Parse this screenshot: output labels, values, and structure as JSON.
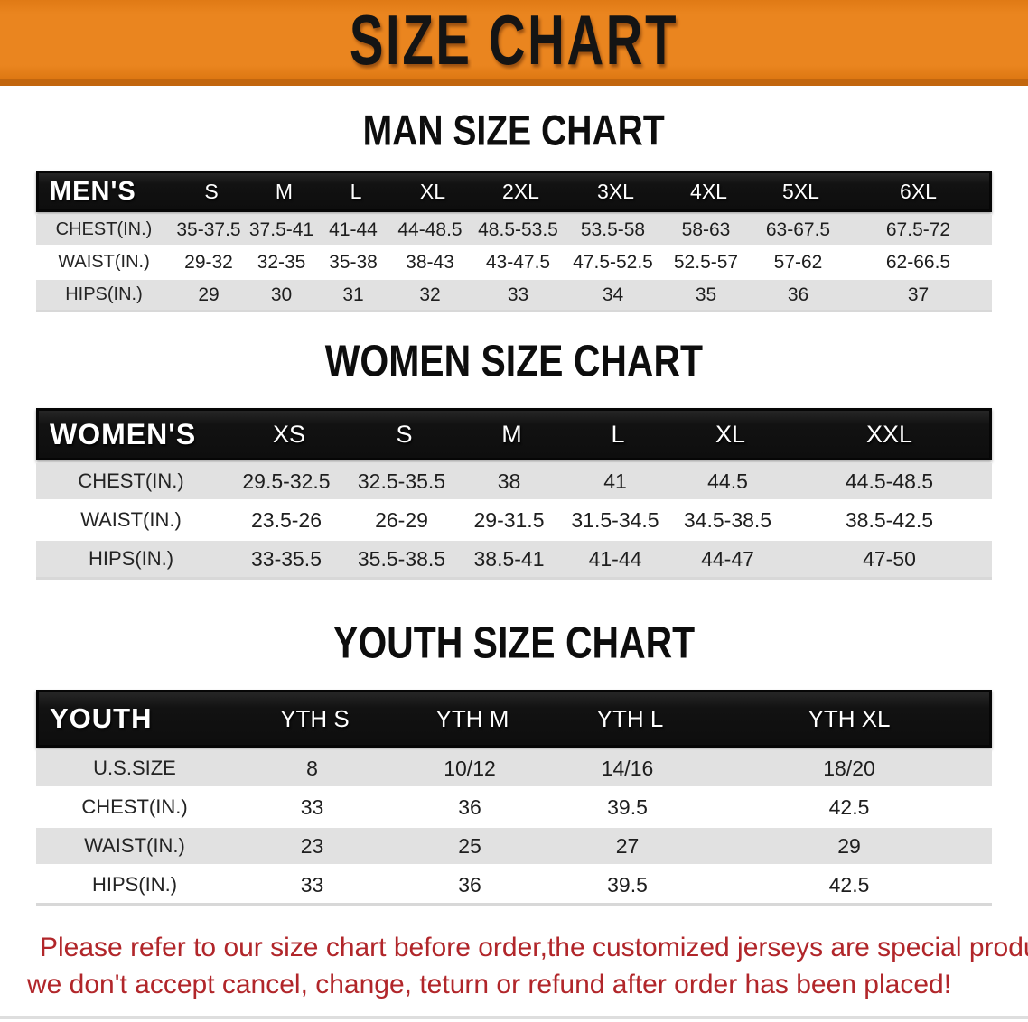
{
  "banner": {
    "title": "SIZE CHART",
    "bg_color": "#EA851F",
    "text_color": "#141414"
  },
  "men": {
    "section_title": "MAN SIZE CHART",
    "header_label": "MEN'S",
    "columns": [
      "S",
      "M",
      "L",
      "XL",
      "2XL",
      "3XL",
      "4XL",
      "5XL",
      "6XL"
    ],
    "rows": [
      {
        "label": "CHEST(IN.)",
        "values": [
          "35-37.5",
          "37.5-41",
          "41-44",
          "44-48.5",
          "48.5-53.5",
          "53.5-58",
          "58-63",
          "63-67.5",
          "67.5-72"
        ]
      },
      {
        "label": "WAIST(IN.)",
        "values": [
          "29-32",
          "32-35",
          "35-38",
          "38-43",
          "43-47.5",
          "47.5-52.5",
          "52.5-57",
          "57-62",
          "62-66.5"
        ]
      },
      {
        "label": "HIPS(IN.)",
        "values": [
          "29",
          "30",
          "31",
          "32",
          "33",
          "34",
          "35",
          "36",
          "37"
        ]
      }
    ]
  },
  "women": {
    "section_title": "WOMEN SIZE CHART",
    "header_label": "WOMEN'S",
    "columns": [
      "XS",
      "S",
      "M",
      "L",
      "XL",
      "XXL"
    ],
    "rows": [
      {
        "label": "CHEST(IN.)",
        "values": [
          "29.5-32.5",
          "32.5-35.5",
          "38",
          "41",
          "44.5",
          "44.5-48.5"
        ]
      },
      {
        "label": "WAIST(IN.)",
        "values": [
          "23.5-26",
          "26-29",
          "29-31.5",
          "31.5-34.5",
          "34.5-38.5",
          "38.5-42.5"
        ]
      },
      {
        "label": "HIPS(IN.)",
        "values": [
          "33-35.5",
          "35.5-38.5",
          "38.5-41",
          "41-44",
          "44-47",
          "47-50"
        ]
      }
    ]
  },
  "youth": {
    "section_title": "YOUTH SIZE CHART",
    "header_label": "YOUTH",
    "columns": [
      "YTH S",
      "YTH M",
      "YTH L",
      "YTH XL"
    ],
    "rows": [
      {
        "label": "U.S.SIZE",
        "values": [
          "8",
          "10/12",
          "14/16",
          "18/20"
        ]
      },
      {
        "label": "CHEST(IN.)",
        "values": [
          "33",
          "36",
          "39.5",
          "42.5"
        ]
      },
      {
        "label": "WAIST(IN.)",
        "values": [
          "23",
          "25",
          "27",
          "29"
        ]
      },
      {
        "label": "HIPS(IN.)",
        "values": [
          "33",
          "36",
          "39.5",
          "42.5"
        ]
      }
    ]
  },
  "footer": {
    "line1": "Please refer to our size chart before order,the customized jerseys are special products,",
    "line2": "we don't accept cancel, change, teturn or refund after order has been placed!",
    "text_color": "#B1262A"
  }
}
